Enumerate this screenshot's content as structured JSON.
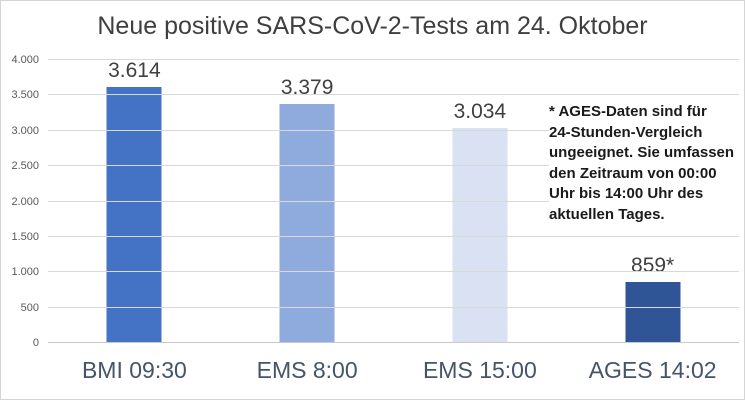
{
  "title": "Neue positive SARS-CoV-2-Tests am 24. Oktober",
  "annotation": "* AGES-Daten sind für\n24-Stunden-Vergleich\nungeeignet. Sie umfassen\nden Zeitraum von 00:00\nUhr bis 14:00 Uhr des\naktuellen Tages.",
  "chart_data": {
    "type": "bar",
    "title": "Neue positive SARS-CoV-2-Tests am 24. Oktober",
    "categories": [
      "BMI 09:30",
      "EMS 8:00",
      "EMS 15:00",
      "AGES 14:02"
    ],
    "values": [
      3614,
      3379,
      3034,
      859
    ],
    "value_labels": [
      "3.614",
      "3.379",
      "3.034",
      "859*"
    ],
    "bar_colors": [
      "#4472C4",
      "#8FAADC",
      "#D9E1F2",
      "#2F5597"
    ],
    "xlabel": "",
    "ylabel": "",
    "ylim": [
      0,
      4000
    ],
    "ytick_step": 500,
    "ytick_labels": [
      "0",
      "500",
      "1.000",
      "1.500",
      "2.000",
      "2.500",
      "3.000",
      "3.500",
      "4.000"
    ],
    "grid": true,
    "gridline_color": "#D9D9D9",
    "legend": false,
    "annotation": "* AGES-Daten sind für 24-Stunden-Vergleich ungeeignet. Sie umfassen den Zeitraum von 00:00 Uhr bis 14:00 Uhr des aktuellen Tages."
  }
}
